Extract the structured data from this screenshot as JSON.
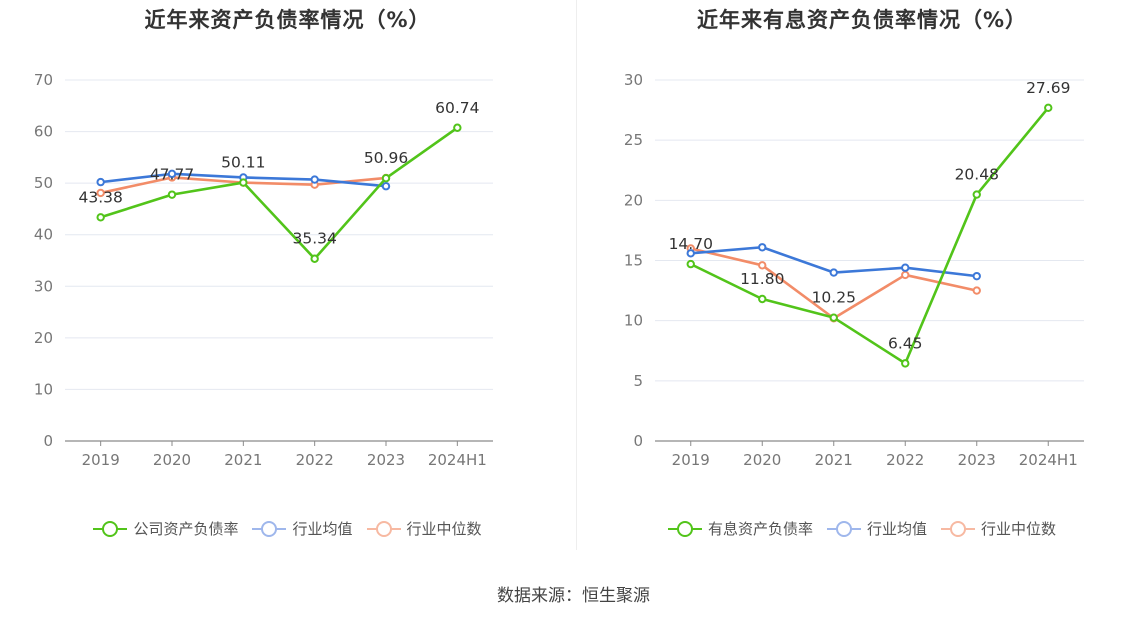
{
  "source_text": "数据来源：恒生聚源",
  "colors": {
    "company": "#52c41a",
    "avg": "#3c78d8",
    "median": "#f28c68"
  },
  "chart_data": [
    {
      "type": "line",
      "title": "近年来资产负债率情况（%）",
      "categories": [
        "2019",
        "2020",
        "2021",
        "2022",
        "2023",
        "2024H1"
      ],
      "ylim": [
        0,
        70
      ],
      "yticks": [
        0,
        10,
        20,
        30,
        40,
        50,
        60,
        70
      ],
      "grid": true,
      "legend_position": "bottom",
      "series": [
        {
          "name": "公司资产负债率",
          "color": "#52c41a",
          "values": [
            43.38,
            47.77,
            50.11,
            35.34,
            50.96,
            60.74
          ],
          "labels": [
            "43.38",
            "47.77",
            "50.11",
            "35.34",
            "50.96",
            "60.74"
          ]
        },
        {
          "name": "行业均值",
          "color": "#3c78d8",
          "values": [
            50.2,
            51.8,
            51.1,
            50.7,
            49.4,
            null
          ]
        },
        {
          "name": "行业中位数",
          "color": "#f28c68",
          "values": [
            48.1,
            51.1,
            50.1,
            49.7,
            51.0,
            null
          ]
        }
      ]
    },
    {
      "type": "line",
      "title": "近年来有息资产负债率情况（%）",
      "categories": [
        "2019",
        "2020",
        "2021",
        "2022",
        "2023",
        "2024H1"
      ],
      "ylim": [
        0,
        30
      ],
      "yticks": [
        0,
        5,
        10,
        15,
        20,
        25,
        30
      ],
      "grid": true,
      "legend_position": "bottom",
      "series": [
        {
          "name": "有息资产负债率",
          "color": "#52c41a",
          "values": [
            14.7,
            11.8,
            10.25,
            6.45,
            20.48,
            27.69
          ],
          "labels": [
            "14.70",
            "11.80",
            "10.25",
            "6.45",
            "20.48",
            "27.69"
          ]
        },
        {
          "name": "行业均值",
          "color": "#3c78d8",
          "values": [
            15.6,
            16.1,
            14.0,
            14.4,
            13.7,
            null
          ]
        },
        {
          "name": "行业中位数",
          "color": "#f28c68",
          "values": [
            16.0,
            14.6,
            10.2,
            13.8,
            12.5,
            null
          ]
        }
      ]
    }
  ]
}
